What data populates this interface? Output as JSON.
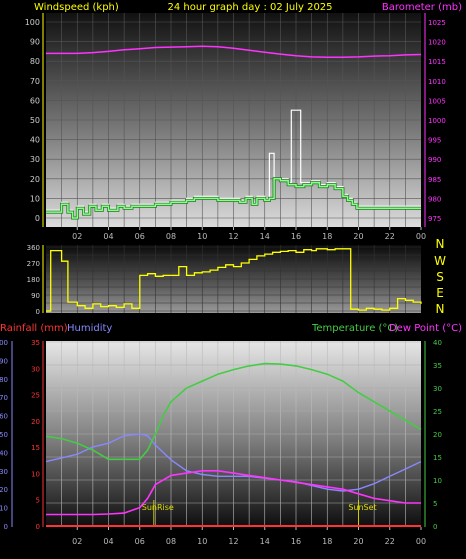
{
  "header": {
    "left_label": "Windspeed (kph)",
    "title": "24 hour graph day : 02 July 2025",
    "right_label": "Barometer (mb)"
  },
  "lower_header": {
    "rainfall_label": "Rainfall (mm)",
    "humidity_label": "Humidity",
    "temp_label": "Temperature (°C)",
    "dewpoint_label": "Dew Point (°C)"
  },
  "compass": [
    "N",
    "W",
    "S",
    "E",
    "N"
  ],
  "colors": {
    "yellow": "#ffff00",
    "magenta": "#ff33ff",
    "green": "#44cc44",
    "lightgreen": "#88ff88",
    "white": "#ffffff",
    "red": "#ff2222",
    "blue": "#8888ff",
    "rain_red": "#ff3333"
  },
  "chart_data": [
    {
      "type": "line",
      "title": "24 hour graph day : 02 July 2025",
      "xlabel": "",
      "x_ticks": [
        "02",
        "04",
        "06",
        "08",
        "10",
        "12",
        "14",
        "16",
        "18",
        "20",
        "22",
        "00"
      ],
      "y_left": {
        "label": "Windspeed (kph)",
        "ticks": [
          0,
          10,
          20,
          30,
          40,
          50,
          60,
          70,
          80,
          90,
          100
        ],
        "ylim": [
          0,
          100
        ]
      },
      "y_right": {
        "label": "Barometer (mb)",
        "ticks": [
          975,
          980,
          985,
          990,
          995,
          1000,
          1005,
          1010,
          1015,
          1020,
          1025
        ],
        "ylim": [
          975,
          1025
        ]
      },
      "series": [
        {
          "name": "Windspeed (kph)",
          "axis": "left",
          "color": "#88ff88",
          "step": true,
          "x": [
            0,
            0.5,
            1,
            1.4,
            1.7,
            2,
            2.4,
            2.8,
            3.2,
            3.6,
            4,
            4.6,
            5,
            5.5,
            6,
            7,
            8,
            8.5,
            9,
            9.5,
            10,
            11,
            12,
            12.4,
            12.8,
            13.2,
            13.5,
            14,
            14.3,
            14.6,
            15,
            15.5,
            16,
            16.5,
            17,
            17.5,
            18,
            18.5,
            19,
            19.3,
            19.6,
            19.9,
            20.3,
            21,
            22,
            23,
            24
          ],
          "values": [
            3,
            3,
            7,
            3,
            0,
            5,
            2,
            6,
            4,
            6,
            4,
            6,
            5,
            6,
            6,
            7,
            8,
            8,
            9,
            10,
            10,
            9,
            9,
            8,
            10,
            7,
            10,
            9,
            10,
            20,
            19,
            17,
            16,
            17,
            18,
            16,
            17,
            15,
            11,
            9,
            7,
            5,
            5,
            5,
            5,
            5,
            5
          ]
        },
        {
          "name": "Wind Gust (kph)",
          "axis": "left",
          "color": "#ffffff",
          "step": true,
          "x": [
            0,
            0.5,
            1,
            1.4,
            1.7,
            2,
            2.4,
            2.8,
            3.2,
            3.6,
            4,
            4.6,
            5,
            5.5,
            6,
            7,
            8,
            8.5,
            9,
            9.5,
            10,
            11,
            12,
            12.4,
            12.8,
            13.2,
            13.5,
            14,
            14.3,
            14.6,
            15,
            15.5,
            15.7,
            16.3,
            16.5,
            17,
            17.5,
            18,
            18.5,
            19,
            19.3,
            19.6,
            19.9,
            20.3,
            21,
            22,
            23,
            24
          ],
          "values": [
            4,
            4,
            8,
            4,
            0,
            6,
            3,
            7,
            5,
            7,
            5,
            7,
            6,
            7,
            7,
            8,
            9,
            9,
            10,
            11,
            11,
            10,
            10,
            9,
            11,
            8,
            11,
            10,
            33,
            20,
            20,
            18,
            55,
            18,
            18,
            19,
            17,
            18,
            16,
            12,
            10,
            8,
            6,
            6,
            6,
            6,
            6,
            6
          ]
        },
        {
          "name": "Barometer (mb)",
          "axis": "right",
          "color": "#ff33ff",
          "x": [
            0,
            1,
            2,
            3,
            4,
            5,
            6,
            7,
            8,
            9,
            10,
            11,
            12,
            13,
            14,
            15,
            16,
            17,
            18,
            19,
            20,
            21,
            22,
            23,
            24
          ],
          "values": [
            1017.0,
            1017.0,
            1017.0,
            1017.2,
            1017.5,
            1017.9,
            1018.2,
            1018.5,
            1018.6,
            1018.7,
            1018.8,
            1018.7,
            1018.3,
            1017.8,
            1017.3,
            1016.8,
            1016.4,
            1016.1,
            1016.0,
            1016.0,
            1016.1,
            1016.3,
            1016.4,
            1016.6,
            1016.7
          ]
        }
      ]
    },
    {
      "type": "line",
      "title": "",
      "y_ticks": [
        0,
        45,
        90,
        135,
        180,
        225,
        270,
        315,
        360
      ],
      "ylim": [
        0,
        360
      ],
      "series": [
        {
          "name": "Wind Direction (°)",
          "color": "#ffff00",
          "step": true,
          "x": [
            0,
            0.3,
            1,
            1.4,
            2,
            2.5,
            3,
            3.5,
            4,
            4.5,
            5,
            5.5,
            6,
            6.5,
            7,
            7.5,
            8,
            8.5,
            9,
            9.5,
            10,
            10.5,
            11,
            11.5,
            12,
            12.5,
            13,
            13.5,
            14,
            14.5,
            15,
            15.5,
            16,
            16.5,
            17,
            17.3,
            18,
            18.5,
            19,
            19.5,
            20,
            20.5,
            21,
            21.5,
            22,
            22.5,
            23,
            23.5,
            24
          ],
          "values": [
            0,
            340,
            280,
            50,
            30,
            15,
            40,
            25,
            30,
            20,
            40,
            15,
            200,
            210,
            195,
            200,
            200,
            250,
            200,
            215,
            220,
            230,
            245,
            260,
            250,
            270,
            290,
            310,
            320,
            330,
            335,
            340,
            330,
            345,
            340,
            350,
            345,
            350,
            350,
            10,
            5,
            15,
            10,
            5,
            15,
            70,
            60,
            50,
            40
          ]
        }
      ]
    },
    {
      "type": "line",
      "title": "",
      "x_ticks": [
        "02",
        "04",
        "06",
        "08",
        "10",
        "12",
        "14",
        "16",
        "18",
        "20",
        "22",
        "00"
      ],
      "annotations": [
        "SunRise",
        "SunSet"
      ],
      "annotation_hours": [
        6.9,
        20.0
      ],
      "y_left_outer": {
        "label": "Humidity",
        "ticks": [
          0,
          10,
          20,
          30,
          40,
          50,
          60,
          70,
          80,
          90,
          100
        ],
        "ylim": [
          0,
          100
        ]
      },
      "y_left_inner": {
        "label": "Rainfall (mm)",
        "ticks": [
          0,
          5,
          10,
          15,
          20,
          25,
          30,
          35
        ],
        "ylim": [
          0,
          35
        ]
      },
      "y_right": {
        "label": "Temperature (°C)",
        "ticks": [
          0,
          5,
          10,
          15,
          20,
          25,
          30,
          35,
          40
        ],
        "ylim": [
          0,
          40
        ]
      },
      "series": [
        {
          "name": "Humidity",
          "axis": "humidity",
          "color": "#8888ff",
          "x": [
            0,
            1,
            2,
            3,
            4,
            5,
            6,
            6.5,
            7,
            8,
            9,
            10,
            11,
            12,
            13,
            14,
            15,
            16,
            17,
            18,
            19,
            20,
            21,
            22,
            23,
            24
          ],
          "values": [
            35,
            37,
            39,
            43,
            45,
            49,
            50,
            49,
            44,
            36,
            30,
            28,
            27,
            27,
            27,
            26,
            25,
            24,
            22,
            20,
            19,
            20,
            23,
            27,
            31,
            35
          ]
        },
        {
          "name": "Temperature (°C)",
          "axis": "temp",
          "color": "#44cc44",
          "x": [
            0,
            1,
            2,
            3,
            4,
            5,
            6,
            6.5,
            7,
            7.5,
            8,
            9,
            10,
            11,
            12,
            13,
            14,
            15,
            16,
            17,
            18,
            19,
            20,
            21,
            22,
            23,
            24
          ],
          "values": [
            19.5,
            19,
            18,
            16.5,
            14.5,
            14.5,
            14.5,
            16.5,
            20,
            24,
            27,
            30,
            31.5,
            33,
            34,
            34.8,
            35.3,
            35.2,
            34.8,
            34,
            33,
            31.5,
            29,
            27,
            25,
            23,
            21
          ]
        },
        {
          "name": "Dew Point (°C)",
          "axis": "temp",
          "color": "#ff33ff",
          "x": [
            0,
            1,
            2,
            3,
            4,
            5,
            6,
            6.5,
            7,
            8,
            9,
            10,
            11,
            12,
            13,
            14,
            15,
            16,
            17,
            18,
            19,
            20,
            21,
            22,
            23,
            24
          ],
          "values": [
            2.5,
            2.5,
            2.5,
            2.5,
            2.6,
            2.8,
            4,
            6,
            9,
            11,
            11.5,
            12,
            12,
            11.5,
            11,
            10.5,
            10,
            9.5,
            9,
            8.5,
            8,
            7,
            6,
            5.5,
            5,
            5
          ]
        },
        {
          "name": "Rainfall (mm)",
          "axis": "rain",
          "color": "#ff3333",
          "x": [
            0,
            24
          ],
          "values": [
            0,
            0
          ]
        }
      ]
    }
  ]
}
